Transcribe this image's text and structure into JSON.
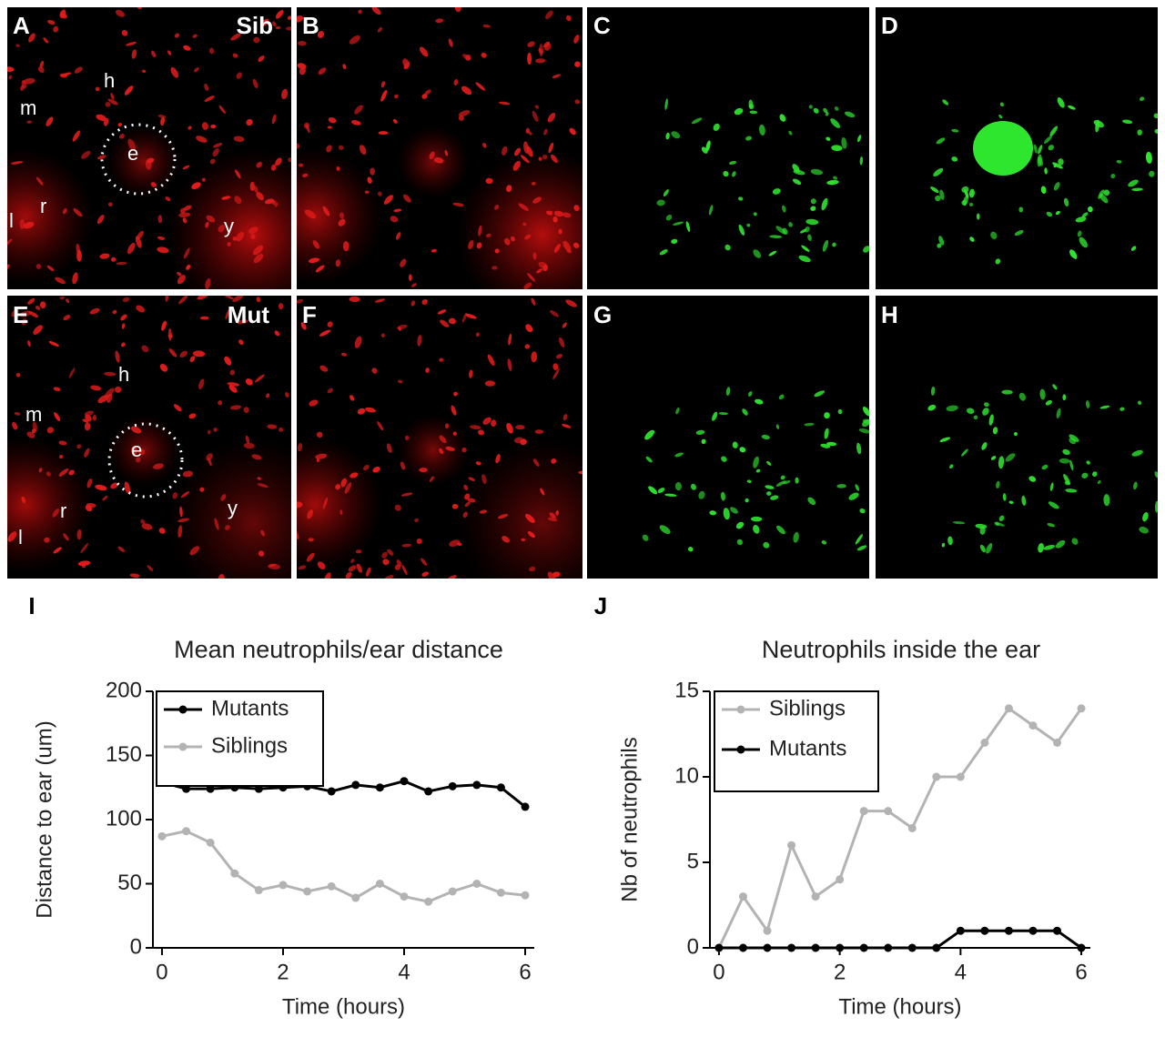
{
  "panels": [
    {
      "label": "A",
      "tag": "Sib",
      "notes": [
        "m",
        "h",
        "e",
        "r",
        "l",
        "y"
      ]
    },
    {
      "label": "B"
    },
    {
      "label": "C"
    },
    {
      "label": "D"
    },
    {
      "label": "E",
      "tag": "Mut",
      "notes": [
        "m",
        "h",
        "e",
        "r",
        "l",
        "y"
      ]
    },
    {
      "label": "F"
    },
    {
      "label": "G"
    },
    {
      "label": "H"
    }
  ],
  "chart_data": [
    {
      "type": "line",
      "panel": "I",
      "title": "Mean neutrophils/ear distance",
      "x_label": "Time (hours)",
      "y_label": "Distance to ear (um)",
      "x": [
        0,
        0.4,
        0.8,
        1.2,
        1.6,
        2.0,
        2.4,
        2.8,
        3.2,
        3.6,
        4.0,
        4.4,
        4.8,
        5.2,
        5.6,
        6.0
      ],
      "series": [
        {
          "name": "Mutants",
          "color": "#000000",
          "values": [
            129,
            124,
            124,
            125,
            124,
            125,
            126,
            122,
            127,
            125,
            130,
            122,
            126,
            127,
            125,
            110
          ]
        },
        {
          "name": "Siblings",
          "color": "#b3b3b3",
          "values": [
            87,
            91,
            82,
            58,
            45,
            49,
            44,
            48,
            39,
            50,
            40,
            36,
            44,
            50,
            43,
            41
          ]
        }
      ],
      "xlim": [
        -0.15,
        6.15
      ],
      "xticks": [
        0,
        2,
        4,
        6
      ],
      "ylim": [
        0,
        200
      ],
      "yticks": [
        0,
        50,
        100,
        150,
        200
      ],
      "legend": "top-left"
    },
    {
      "type": "line",
      "panel": "J",
      "title": "Neutrophils inside the ear",
      "x_label": "Time (hours)",
      "y_label": "Nb of neutrophils",
      "x": [
        0,
        0.4,
        0.8,
        1.2,
        1.6,
        2.0,
        2.4,
        2.8,
        3.2,
        3.6,
        4.0,
        4.4,
        4.8,
        5.2,
        5.6,
        6.0
      ],
      "series": [
        {
          "name": "Siblings",
          "color": "#b3b3b3",
          "values": [
            0,
            3,
            1,
            6,
            3,
            4,
            8,
            8,
            7,
            10,
            10,
            12,
            14,
            13,
            12,
            14
          ]
        },
        {
          "name": "Mutants",
          "color": "#000000",
          "values": [
            0,
            0,
            0,
            0,
            0,
            0,
            0,
            0,
            0,
            0,
            1,
            1,
            1,
            1,
            1,
            0
          ]
        }
      ],
      "xlim": [
        -0.15,
        6.15
      ],
      "xticks": [
        0,
        2,
        4,
        6
      ],
      "ylim": [
        0,
        15
      ],
      "yticks": [
        0,
        5,
        10,
        15
      ],
      "legend": "top-left"
    }
  ]
}
